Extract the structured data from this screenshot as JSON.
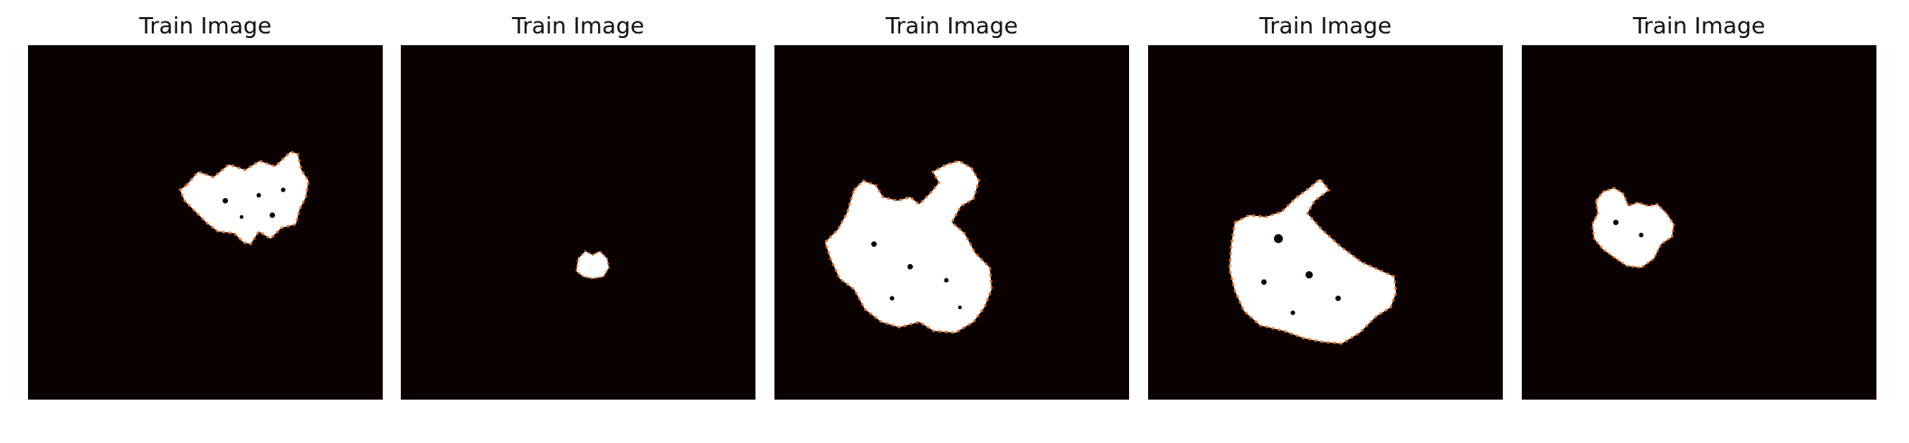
{
  "figure": {
    "background_color": "#ffffff",
    "image_background_color": "#0a0000",
    "mask_color": "#ffffff",
    "edge_color": "#e8742a",
    "panels": [
      {
        "title": "Train Image"
      },
      {
        "title": "Train Image"
      },
      {
        "title": "Train Image"
      },
      {
        "title": "Train Image"
      },
      {
        "title": "Train Image"
      }
    ]
  }
}
